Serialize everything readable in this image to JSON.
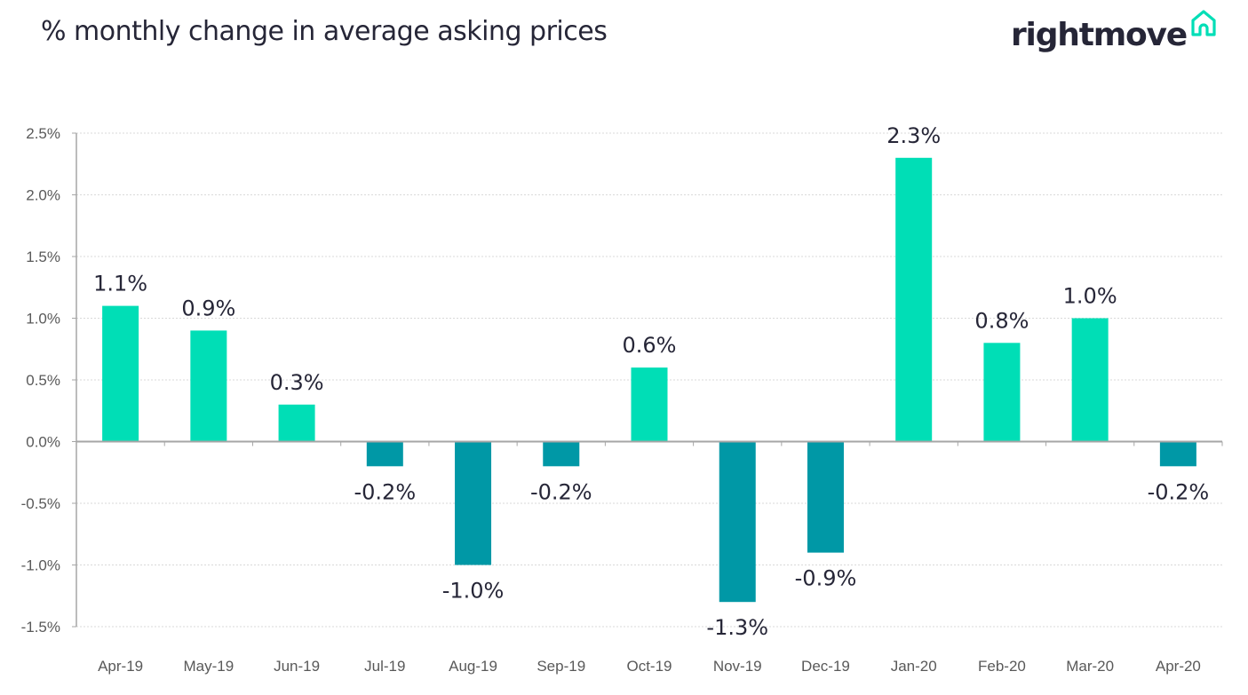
{
  "header": {
    "title": "% monthly change in average asking prices",
    "logo_text": "rightmove"
  },
  "chart_data": {
    "type": "bar",
    "title": "% monthly change in average asking prices",
    "categories": [
      "Apr-19",
      "May-19",
      "Jun-19",
      "Jul-19",
      "Aug-19",
      "Sep-19",
      "Oct-19",
      "Nov-19",
      "Dec-19",
      "Jan-20",
      "Feb-20",
      "Mar-20",
      "Apr-20"
    ],
    "values": [
      1.1,
      0.9,
      0.3,
      -0.2,
      -1.0,
      -0.2,
      0.6,
      -1.3,
      -0.9,
      2.3,
      0.8,
      1.0,
      -0.2
    ],
    "data_labels": [
      "1.1%",
      "0.9%",
      "0.3%",
      "-0.2%",
      "-1.0%",
      "-0.2%",
      "0.6%",
      "-1.3%",
      "-0.9%",
      "2.3%",
      "0.8%",
      "1.0%",
      "-0.2%"
    ],
    "yticks": [
      2.5,
      2.0,
      1.5,
      1.0,
      0.5,
      0.0,
      -0.5,
      -1.0,
      -1.5
    ],
    "ytick_labels": [
      "2.5%",
      "2.0%",
      "1.5%",
      "1.0%",
      "0.5%",
      "0.0%",
      "-0.5%",
      "-1.0%",
      "-1.5%"
    ],
    "ylim": [
      -1.5,
      2.5
    ],
    "grid": true,
    "colors": {
      "positive": "#00deb6",
      "negative": "#0098a6",
      "grid": "#d9d9d9",
      "axis": "#a6a6a6"
    }
  }
}
